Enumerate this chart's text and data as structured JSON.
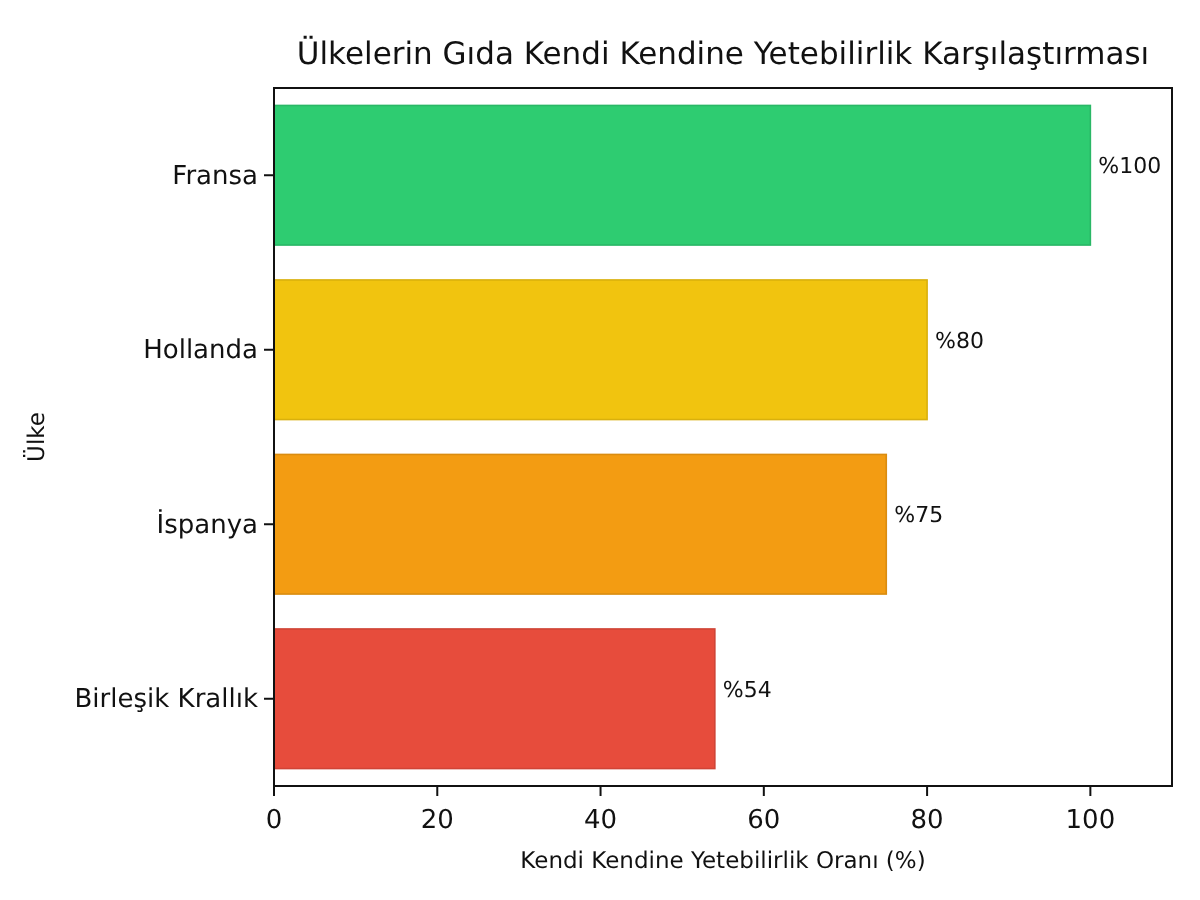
{
  "chart_data": {
    "type": "bar",
    "orientation": "horizontal",
    "title": "Ülkelerin Gıda Kendi Kendine Yetebilirlik Karşılaştırması",
    "xlabel": "Kendi Kendine Yetebilirlik Oranı (%)",
    "ylabel": "Ülke",
    "categories": [
      "Fransa",
      "Hollanda",
      "İspanya",
      "Birleşik Krallık"
    ],
    "values": [
      100,
      80,
      75,
      54
    ],
    "colors": [
      "#2ecc71",
      "#f1c40f",
      "#f39c12",
      "#e74c3c"
    ],
    "value_labels": [
      "%100",
      "%80",
      "%75",
      "%54"
    ],
    "xlim": [
      0,
      110
    ],
    "xticks": [
      0,
      20,
      40,
      60,
      80,
      100
    ]
  }
}
